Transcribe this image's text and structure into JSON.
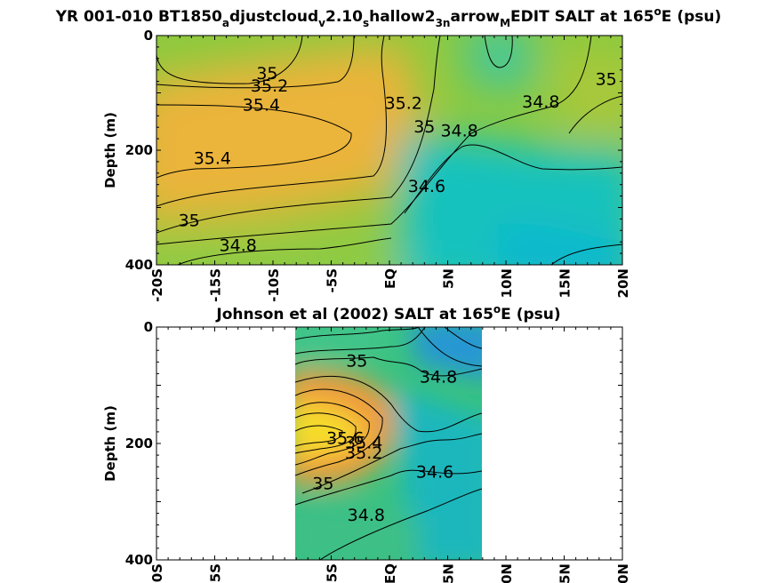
{
  "chart_data": [
    {
      "type": "heatmap",
      "title": "YR 001-010 BT1850_adjustcloud_v2.10_shallow2_3n arrow_M EDIT SALT at 165°E (psu)",
      "title_parts": [
        "YR 001-010 BT1850",
        "a",
        "djustcloud",
        "v",
        "2.10",
        "s",
        "hallow2",
        "3n",
        "arrow",
        "M",
        "EDIT SALT at 165",
        "o",
        "E (psu)"
      ],
      "ylabel": "Depth (m)",
      "xlabel": "",
      "x_ticks": [
        "-20S",
        "-15S",
        "-10S",
        "-5S",
        "EQ",
        "5N",
        "10N",
        "15N",
        "20N"
      ],
      "x_tick_values": [
        -20,
        -15,
        -10,
        -5,
        0,
        5,
        10,
        15,
        20
      ],
      "y_ticks": [
        "0",
        "200",
        "400"
      ],
      "y_tick_values": [
        0,
        200,
        400
      ],
      "xlim": [
        -20,
        20
      ],
      "ylim": [
        400,
        0
      ],
      "colormap": "parula",
      "color_range": [
        34.2,
        35.8
      ],
      "data_extent_x": [
        -20,
        20
      ],
      "contour_labels": [
        {
          "text": "35",
          "lat": -10.5,
          "depth": 65
        },
        {
          "text": "35.2",
          "lat": -10.3,
          "depth": 87
        },
        {
          "text": "35.4",
          "lat": -11.0,
          "depth": 120
        },
        {
          "text": "35.4",
          "lat": -15.2,
          "depth": 213
        },
        {
          "text": "35",
          "lat": -17.2,
          "depth": 322
        },
        {
          "text": "34.8",
          "lat": -13.0,
          "depth": 365
        },
        {
          "text": "35.2",
          "lat": 1.2,
          "depth": 117
        },
        {
          "text": "35",
          "lat": 3.0,
          "depth": 158
        },
        {
          "text": "34.8",
          "lat": 6.0,
          "depth": 165
        },
        {
          "text": "34.6",
          "lat": 3.2,
          "depth": 262
        },
        {
          "text": "34.8",
          "lat": 13.0,
          "depth": 115
        },
        {
          "text": "35",
          "lat": 18.6,
          "depth": 75
        }
      ]
    },
    {
      "type": "heatmap",
      "title": "Johnson et al (2002) SALT at 165°E (psu)",
      "title_parts": [
        "Johnson et al (2002) SALT at 165",
        "o",
        "E (psu)"
      ],
      "ylabel": "Depth (m)",
      "xlabel": "",
      "x_ticks": [
        "0S",
        "5S",
        "5S",
        "EQ",
        "5N",
        "0N",
        "5N",
        "0N"
      ],
      "x_tick_values": [
        -20,
        -15,
        -5,
        0,
        5,
        10,
        15,
        20
      ],
      "y_ticks": [
        "0",
        "200",
        "400"
      ],
      "y_tick_values": [
        0,
        200,
        400
      ],
      "xlim": [
        -20,
        20
      ],
      "ylim": [
        400,
        0
      ],
      "colormap": "parula",
      "color_range": [
        34.2,
        35.8
      ],
      "data_extent_x": [
        -8,
        8
      ],
      "contour_labels": [
        {
          "text": "35",
          "lat": -2.8,
          "depth": 57
        },
        {
          "text": "34.8",
          "lat": 4.2,
          "depth": 85
        },
        {
          "text": "35.6",
          "lat": -3.8,
          "depth": 190
        },
        {
          "text": "35.4",
          "lat": -2.2,
          "depth": 198
        },
        {
          "text": "35.2",
          "lat": -2.2,
          "depth": 215
        },
        {
          "text": "35",
          "lat": -5.7,
          "depth": 268
        },
        {
          "text": "34.6",
          "lat": 3.9,
          "depth": 248
        },
        {
          "text": "34.8",
          "lat": -2.0,
          "depth": 322
        }
      ]
    }
  ]
}
